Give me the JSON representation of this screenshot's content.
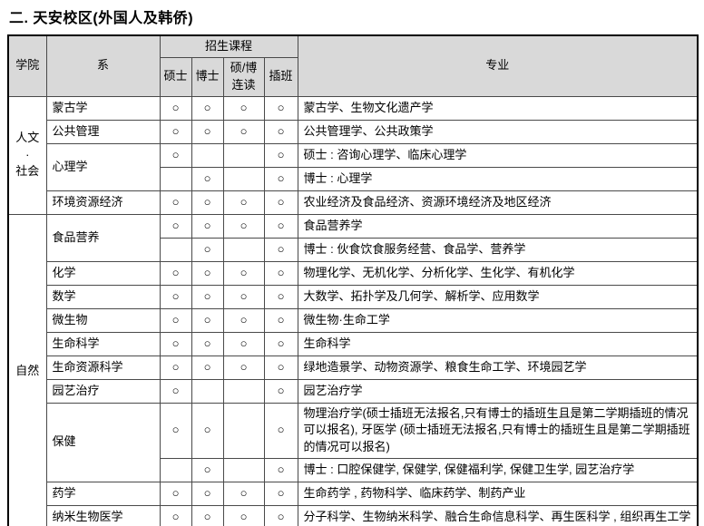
{
  "title": "二. 天安校区(外国人及韩侨)",
  "mark_symbol": "○",
  "colors": {
    "header_bg": "#d9d9d9",
    "border_outer": "#000000",
    "border_inner": "#4a4a4a",
    "text": "#000000"
  },
  "table": {
    "header": {
      "college": "学院",
      "department": "系",
      "courses": "招生课程",
      "sub": [
        "硕士",
        "博士",
        "硕/博连读",
        "插班"
      ],
      "major": "专业"
    },
    "groups": [
      {
        "name": "人文\n·\n社会",
        "rows": [
          {
            "dept": "蒙古学",
            "dept_rowspan": 1,
            "marks": [
              1,
              1,
              1,
              1
            ],
            "major": "蒙古学、生物文化遗产学"
          },
          {
            "dept": "公共管理",
            "dept_rowspan": 1,
            "marks": [
              1,
              1,
              1,
              1
            ],
            "major": "公共管理学、公共政策学"
          },
          {
            "dept": "心理学",
            "dept_rowspan": 2,
            "marks": [
              1,
              0,
              0,
              1
            ],
            "major": "硕士 : 咨询心理学、临床心理学"
          },
          {
            "dept": null,
            "marks": [
              0,
              1,
              0,
              1
            ],
            "major": "博士 : 心理学"
          },
          {
            "dept": "环境资源经济",
            "dept_rowspan": 1,
            "marks": [
              1,
              1,
              1,
              1
            ],
            "major": "农业经济及食品经济、资源环境经济及地区经济"
          }
        ]
      },
      {
        "name": "自然",
        "rows": [
          {
            "dept": "食品营养",
            "dept_rowspan": 2,
            "marks": [
              1,
              1,
              1,
              1
            ],
            "major": "食品营养学"
          },
          {
            "dept": null,
            "marks": [
              0,
              1,
              0,
              1
            ],
            "major": "博士 : 伙食饮食服务经营、食品学、营养学"
          },
          {
            "dept": "化学",
            "dept_rowspan": 1,
            "marks": [
              1,
              1,
              1,
              1
            ],
            "major": "物理化学、无机化学、分析化学、生化学、有机化学"
          },
          {
            "dept": "数学",
            "dept_rowspan": 1,
            "marks": [
              1,
              1,
              1,
              1
            ],
            "major": "大数学、拓扑学及几何学、解析学、应用数学"
          },
          {
            "dept": "微生物",
            "dept_rowspan": 1,
            "marks": [
              1,
              1,
              1,
              1
            ],
            "major": "微生物·生命工学"
          },
          {
            "dept": "生命科学",
            "dept_rowspan": 1,
            "marks": [
              1,
              1,
              1,
              1
            ],
            "major": "生命科学"
          },
          {
            "dept": "生命资源科学",
            "dept_rowspan": 1,
            "marks": [
              1,
              1,
              1,
              1
            ],
            "major": "绿地造景学、动物资源学、粮食生命工学、环境园艺学"
          },
          {
            "dept": "园艺治疗",
            "dept_rowspan": 1,
            "marks": [
              1,
              0,
              0,
              1
            ],
            "major": "园艺治疗学"
          },
          {
            "dept": "保健",
            "dept_rowspan": 2,
            "marks": [
              1,
              1,
              0,
              1
            ],
            "major": "物理治疗学(硕士插班无法报名,只有博士的插班生且是第二学期插班的情况可以报名), 牙医学 (硕士插班无法报名,只有博士的插班生且是第二学期插班的情况可以报名)"
          },
          {
            "dept": null,
            "marks": [
              0,
              1,
              0,
              1
            ],
            "major": "博士 : 口腔保健学, 保健学, 保健福利学, 保健卫生学, 园艺治疗学"
          },
          {
            "dept": "药学",
            "dept_rowspan": 1,
            "marks": [
              1,
              1,
              1,
              1
            ],
            "major": "生命药学 , 药物科学、临床药学、制药产业"
          },
          {
            "dept": "纳米生物医学",
            "dept_rowspan": 1,
            "marks": [
              1,
              1,
              1,
              1
            ],
            "major": "分子科学、生物纳米科学、融合生命信息科学、再生医科学 , 组织再生工学"
          }
        ]
      }
    ]
  }
}
